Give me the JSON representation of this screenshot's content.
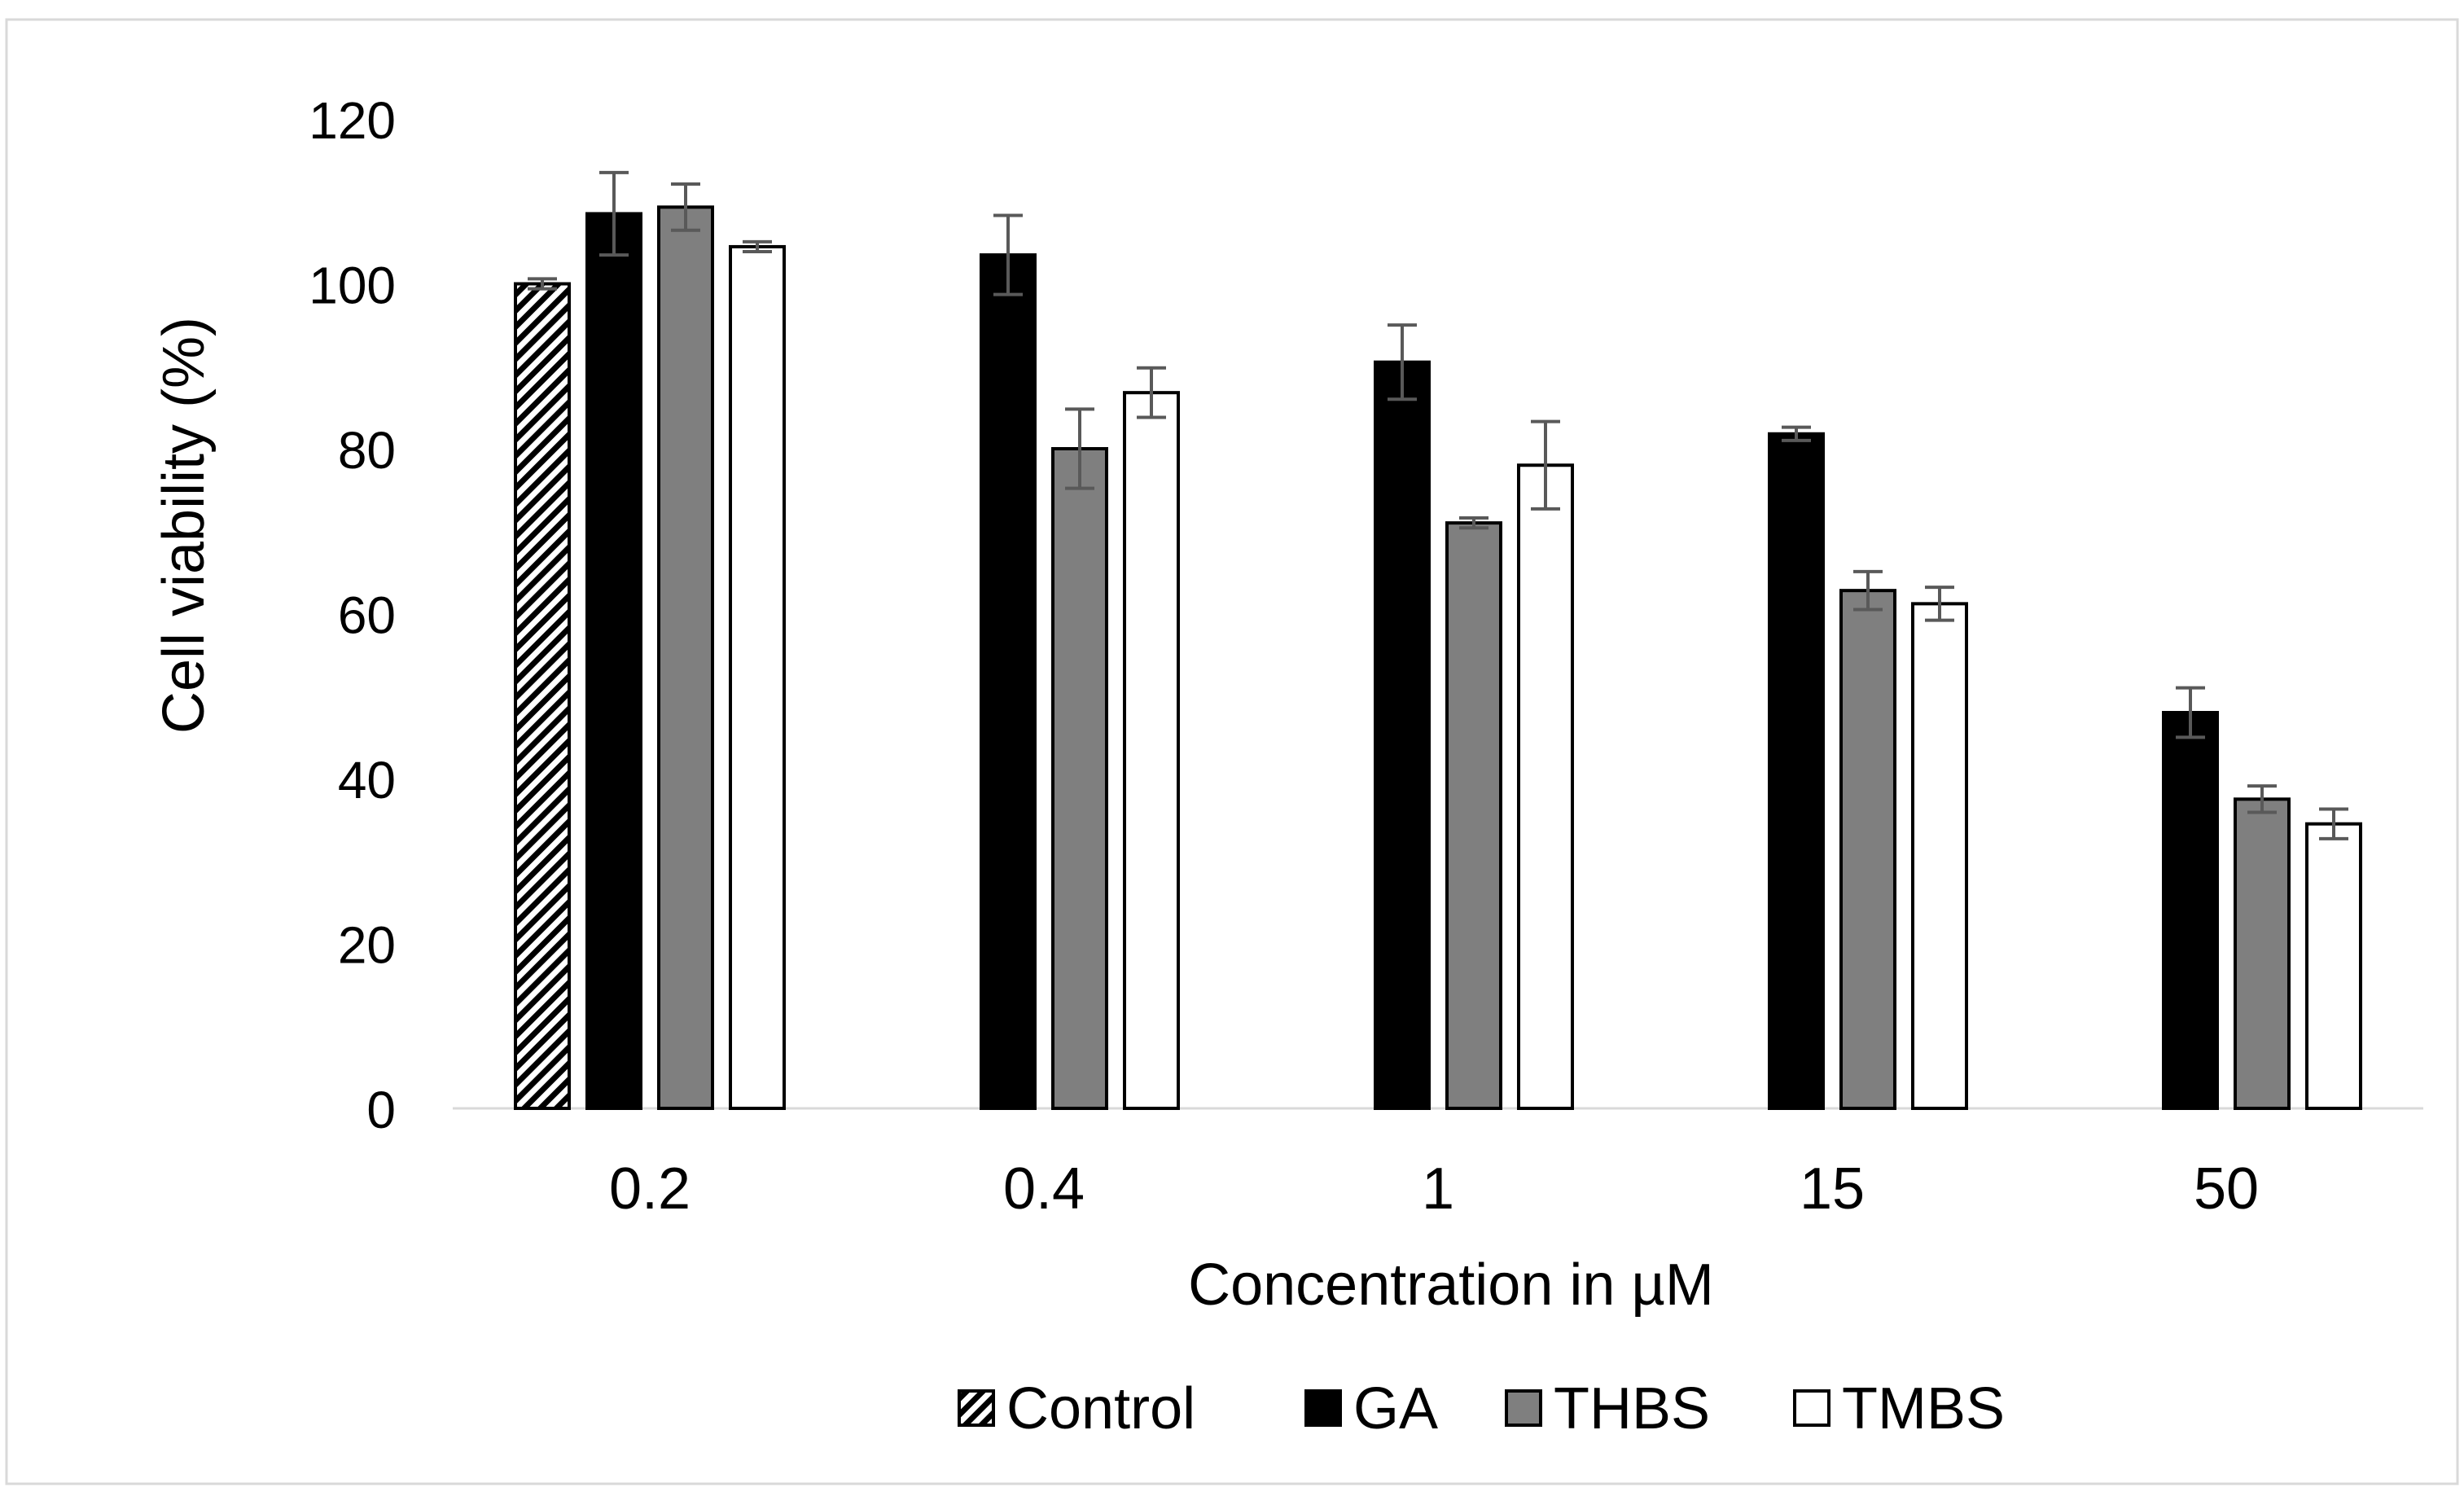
{
  "chart_data": {
    "type": "bar",
    "title": "",
    "xlabel": "Concentration in µM",
    "ylabel": "Cell viability (%)",
    "ylim": [
      0,
      120
    ],
    "yticks": [
      0,
      20,
      40,
      60,
      80,
      100,
      120
    ],
    "grid": false,
    "legend_position": "bottom",
    "categories": [
      "0.2",
      "0.4",
      "1",
      "15",
      "50"
    ],
    "series": [
      {
        "name": "Control",
        "style": "hatched",
        "color": "#000000",
        "values": [
          100,
          null,
          null,
          null,
          null
        ],
        "errors": [
          0.6,
          null,
          null,
          null,
          null
        ]
      },
      {
        "name": "GA",
        "style": "solid",
        "color": "#000000",
        "values": [
          108.5,
          103.5,
          90.5,
          81.8,
          48
        ],
        "errors": [
          5,
          4.8,
          4.5,
          0.8,
          3
        ]
      },
      {
        "name": "THBS",
        "style": "solid",
        "color": "#7f7f7f",
        "values": [
          109.3,
          80,
          71,
          62.8,
          37.5
        ],
        "errors": [
          2.8,
          4.8,
          0.6,
          2.3,
          1.6
        ]
      },
      {
        "name": "TMBS",
        "style": "solid",
        "color": "#ffffff",
        "values": [
          104.5,
          86.8,
          78,
          61.2,
          34.5
        ],
        "errors": [
          0.6,
          3,
          5.3,
          2,
          1.8
        ]
      }
    ]
  }
}
